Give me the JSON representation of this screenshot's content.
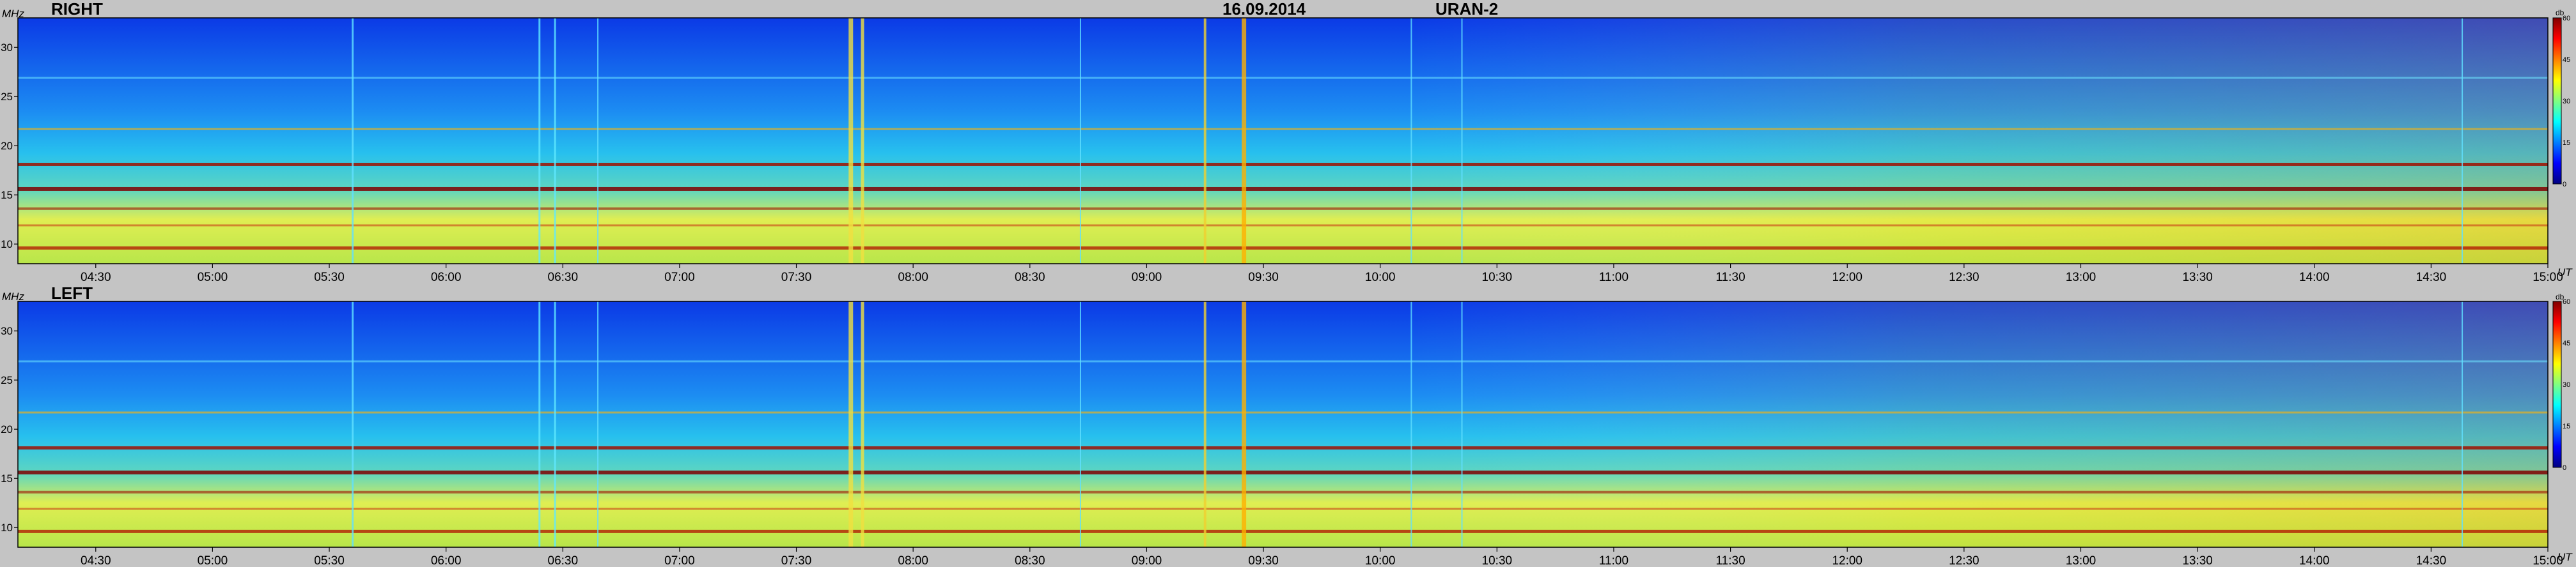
{
  "header": {
    "date": "16.09.2014",
    "instrument": "URAN-2"
  },
  "colors": {
    "background": "#c4c4c4",
    "grid": "#000000",
    "colormap": [
      "#000080",
      "#0000ff",
      "#0080ff",
      "#00ffff",
      "#80ff80",
      "#ffff00",
      "#ff8000",
      "#ff0000",
      "#800000"
    ]
  },
  "chart_data": [
    {
      "type": "heatmap",
      "title": "RIGHT",
      "ylabel": "MHz",
      "xlabel": "UT",
      "x_ticks": [
        "04:30",
        "05:00",
        "05:30",
        "06:00",
        "06:30",
        "07:00",
        "07:30",
        "08:00",
        "08:30",
        "09:00",
        "09:30",
        "10:00",
        "10:30",
        "11:00",
        "11:30",
        "12:00",
        "12:30",
        "13:00",
        "13:30",
        "14:00",
        "14:30",
        "15:00"
      ],
      "y_ticks": [
        10,
        15,
        20,
        25,
        30
      ],
      "ylim": [
        8,
        33
      ],
      "xlim": [
        "04:10",
        "15:00"
      ],
      "colorbar": {
        "label": "db",
        "ticks": [
          0,
          15,
          30,
          45,
          60
        ],
        "range": [
          0,
          60
        ]
      },
      "notes": "Dynamic radio spectrum: background intensity ~15-30 dB rising toward lower frequencies; narrow-band interference lines near 9.5, 12, 13.5, 15.5, 18 and 22 MHz; broadband vertical bursts near 07:45 and 09:25 UT."
    },
    {
      "type": "heatmap",
      "title": "LEFT",
      "ylabel": "MHz",
      "xlabel": "UT",
      "x_ticks": [
        "04:30",
        "05:00",
        "05:30",
        "06:00",
        "06:30",
        "07:00",
        "07:30",
        "08:00",
        "08:30",
        "09:00",
        "09:30",
        "10:00",
        "10:30",
        "11:00",
        "11:30",
        "12:00",
        "12:30",
        "13:00",
        "13:30",
        "14:00",
        "14:30",
        "15:00"
      ],
      "y_ticks": [
        10,
        15,
        20,
        25,
        30
      ],
      "ylim": [
        8,
        33
      ],
      "xlim": [
        "04:10",
        "15:00"
      ],
      "colorbar": {
        "label": "db",
        "ticks": [
          0,
          15,
          30,
          45,
          60
        ],
        "range": [
          0,
          60
        ]
      },
      "notes": "Same observation in left-hand polarization; pattern closely matches the RIGHT channel."
    }
  ]
}
